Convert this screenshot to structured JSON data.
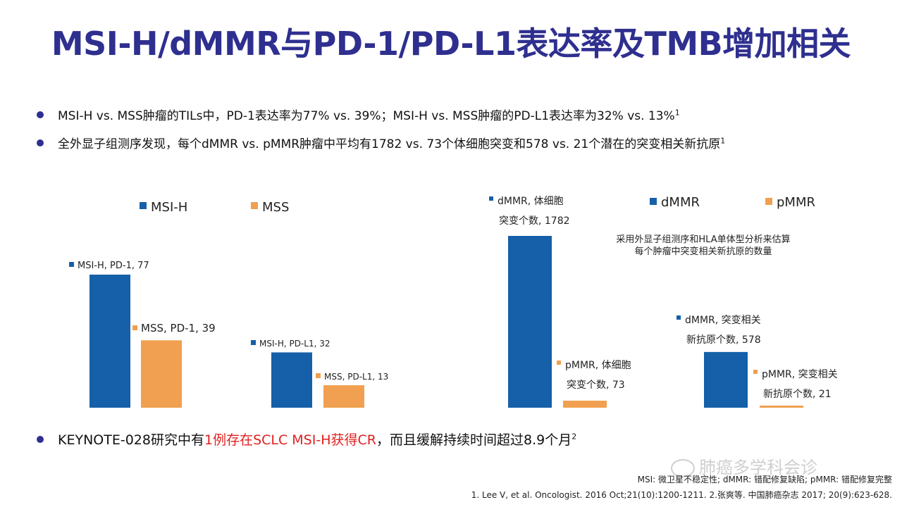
{
  "title": "MSI-H/dMMR与PD-1/PD-L1表达率及TMB增加相关",
  "bullets": [
    {
      "text": "MSI-H vs. MSS肿瘤的TILs中，PD-1表达率为77%  vs. 39%；MSI-H vs. MSS肿瘤的PD-L1表达率为32%  vs. 13%",
      "sup": "1"
    },
    {
      "text": "全外显子组测序发现，每个dMMR  vs. pMMR肿瘤中平均有1782  vs. 73个体细胞突变和578 vs. 21个潜在的突变相关新抗原",
      "sup": "1"
    }
  ],
  "bottom_bullet": {
    "pre": "KEYNOTE-028研究中有",
    "highlight": "1例存在SCLC  MSI-H获得CR",
    "post": "，而且缓解持续时间超过8.9个月",
    "sup": "2"
  },
  "colors": {
    "title": "#2e2f8f",
    "blue": "#1560a8",
    "orange": "#f0a050",
    "red": "#e02020"
  },
  "chart_data": [
    {
      "type": "bar",
      "title": "",
      "legend": [
        {
          "name": "MSI-H",
          "color": "#1560a8"
        },
        {
          "name": "MSS",
          "color": "#f0a050"
        }
      ],
      "bars": [
        {
          "series": "MSI-H",
          "group": "PD-1",
          "value": 77,
          "label": "MSI-H,  PD-1, 77"
        },
        {
          "series": "MSS",
          "group": "PD-1",
          "value": 39,
          "label": "MSS, PD-1, 39"
        },
        {
          "series": "MSI-H",
          "group": "PD-L1",
          "value": 32,
          "label": "MSI-H, PD-L1, 32"
        },
        {
          "series": "MSS",
          "group": "PD-L1",
          "value": 13,
          "label": "MSS, PD-L1, 13"
        }
      ],
      "ylim": [
        0,
        100
      ]
    },
    {
      "type": "bar",
      "title": "",
      "legend": [
        {
          "name": "dMMR",
          "color": "#1560a8"
        },
        {
          "name": "pMMR",
          "color": "#f0a050"
        }
      ],
      "note": [
        "采用外显子组测序和HLA单体型分析来估算",
        "每个肿瘤中突变相关新抗原的数量"
      ],
      "bars": [
        {
          "series": "dMMR",
          "group": "体细胞突变个数",
          "value": 1782,
          "label": [
            "dMMR, 体细胞",
            "突变个数, 1782"
          ]
        },
        {
          "series": "pMMR",
          "group": "体细胞突变个数",
          "value": 73,
          "label": [
            "pMMR, 体细胞",
            "突变个数, 73"
          ]
        },
        {
          "series": "dMMR",
          "group": "突变相关新抗原个数",
          "value": 578,
          "label": [
            "dMMR, 突变相关",
            "新抗原个数, 578"
          ]
        },
        {
          "series": "pMMR",
          "group": "突变相关新抗原个数",
          "value": 21,
          "label": [
            "pMMR, 突变相关",
            "新抗原个数, 21"
          ]
        }
      ],
      "ylim": [
        0,
        1782
      ]
    }
  ],
  "footnotes": {
    "abbrev": "MSI: 微卫星不稳定性; dMMR: 错配修复缺陷; pMMR: 错配修复完整",
    "refs": "1. Lee V, et al. Oncologist. 2016 Oct;21(10):1200-1211. 2.张爽等. 中国肺癌杂志 2017; 20(9):623-628."
  },
  "watermark": "肺癌多学科会诊"
}
